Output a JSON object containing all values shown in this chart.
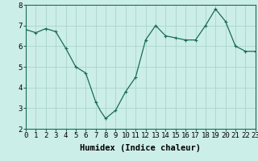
{
  "title": "",
  "xlabel": "Humidex (Indice chaleur)",
  "ylabel": "",
  "background_color": "#cceee8",
  "grid_color": "#aad4cc",
  "line_color": "#1a6b5a",
  "marker_color": "#1a6b5a",
  "ylim": [
    2,
    8
  ],
  "xlim": [
    0,
    23
  ],
  "yticks": [
    2,
    3,
    4,
    5,
    6,
    7,
    8
  ],
  "xticks": [
    0,
    1,
    2,
    3,
    4,
    5,
    6,
    7,
    8,
    9,
    10,
    11,
    12,
    13,
    14,
    15,
    16,
    17,
    18,
    19,
    20,
    21,
    22,
    23
  ],
  "x": [
    0,
    0.5,
    1,
    1.5,
    2,
    2.5,
    3,
    3.5,
    4,
    4.5,
    5,
    5.5,
    6,
    6.5,
    7,
    7.5,
    8,
    8.5,
    9,
    9.5,
    10,
    10.5,
    11,
    11.5,
    12,
    12.5,
    13,
    13.5,
    14,
    14.5,
    15,
    15.5,
    16,
    16.5,
    17,
    17.5,
    18,
    18.5,
    19,
    19.5,
    20,
    20.5,
    21,
    21.5,
    22,
    22.5,
    23
  ],
  "y": [
    6.8,
    6.73,
    6.65,
    6.75,
    6.85,
    6.78,
    6.7,
    6.3,
    5.9,
    5.45,
    5.0,
    4.85,
    4.7,
    4.0,
    3.3,
    2.85,
    2.5,
    2.7,
    2.9,
    3.35,
    3.8,
    4.15,
    4.5,
    5.4,
    6.3,
    6.65,
    7.0,
    6.75,
    6.5,
    6.45,
    6.4,
    6.35,
    6.3,
    6.3,
    6.3,
    6.65,
    7.0,
    7.4,
    7.8,
    7.5,
    7.2,
    6.6,
    6.0,
    5.88,
    5.75,
    5.75,
    5.75
  ],
  "marker_x": [
    0,
    1,
    2,
    3,
    4,
    5,
    6,
    7,
    8,
    9,
    10,
    11,
    12,
    13,
    14,
    15,
    16,
    17,
    18,
    19,
    20,
    21,
    22,
    23
  ],
  "marker_y": [
    6.8,
    6.65,
    6.85,
    6.7,
    5.9,
    5.0,
    4.7,
    3.3,
    2.5,
    2.9,
    3.8,
    4.5,
    6.3,
    7.0,
    6.5,
    6.4,
    6.3,
    6.3,
    7.0,
    7.8,
    7.2,
    6.0,
    5.75,
    5.75
  ],
  "font_family": "monospace",
  "label_fontsize": 7.5,
  "tick_fontsize": 6.5
}
